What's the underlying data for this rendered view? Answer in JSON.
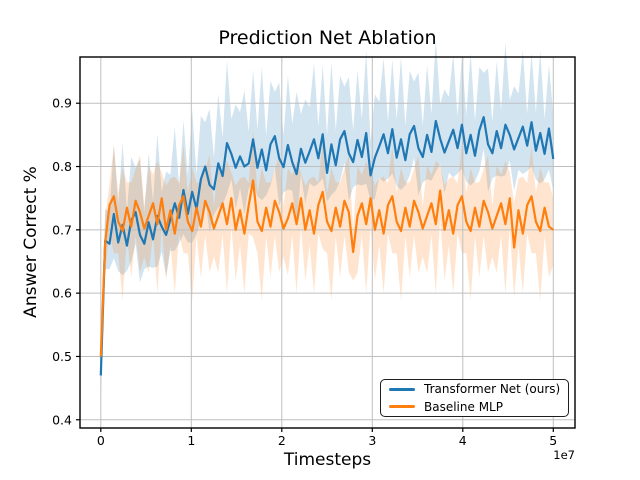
{
  "chart_data": {
    "type": "line",
    "title": "Prediction Net Ablation",
    "xlabel": "Timesteps",
    "ylabel": "Answer Correct %",
    "x_offset_label": "1e7",
    "grid": true,
    "grid_color": "#bfbfbf",
    "axes": {
      "xlim": [
        -2300000,
        52400000
      ],
      "ylim": [
        0.387,
        0.973
      ]
    },
    "xticks": {
      "values": [
        0,
        10000000,
        20000000,
        30000000,
        40000000,
        50000000
      ],
      "labels": [
        "0",
        "1",
        "2",
        "3",
        "4",
        "5"
      ]
    },
    "yticks": {
      "values": [
        0.4,
        0.5,
        0.6,
        0.7,
        0.8,
        0.9
      ],
      "labels": [
        "0.4",
        "0.5",
        "0.6",
        "0.7",
        "0.8",
        "0.9"
      ]
    },
    "legend": {
      "position": "lower right"
    },
    "band_opacity": 0.2,
    "series": [
      {
        "name": "Transformer Net (ours)",
        "color": "#1f77b4",
        "x_start": 0,
        "x_step": 480769,
        "y": [
          0.47,
          0.683,
          0.678,
          0.725,
          0.68,
          0.708,
          0.675,
          0.715,
          0.728,
          0.692,
          0.678,
          0.712,
          0.685,
          0.722,
          0.705,
          0.692,
          0.717,
          0.742,
          0.719,
          0.763,
          0.725,
          0.76,
          0.733,
          0.78,
          0.8,
          0.771,
          0.764,
          0.805,
          0.785,
          0.837,
          0.82,
          0.798,
          0.816,
          0.8,
          0.805,
          0.843,
          0.798,
          0.827,
          0.794,
          0.835,
          0.848,
          0.813,
          0.799,
          0.834,
          0.807,
          0.788,
          0.828,
          0.806,
          0.824,
          0.843,
          0.813,
          0.851,
          0.79,
          0.835,
          0.802,
          0.843,
          0.856,
          0.821,
          0.807,
          0.842,
          0.815,
          0.853,
          0.786,
          0.814,
          0.832,
          0.851,
          0.821,
          0.859,
          0.814,
          0.843,
          0.81,
          0.851,
          0.864,
          0.829,
          0.815,
          0.85,
          0.823,
          0.872,
          0.844,
          0.822,
          0.84,
          0.858,
          0.829,
          0.866,
          0.821,
          0.85,
          0.817,
          0.857,
          0.878,
          0.835,
          0.821,
          0.856,
          0.829,
          0.866,
          0.85,
          0.827,
          0.845,
          0.863,
          0.833,
          0.87,
          0.825,
          0.853,
          0.82,
          0.86,
          0.812
        ],
        "band_upper": [
          0.045,
          0.05,
          0.05,
          0.11,
          0.06,
          0.13,
          0.055,
          0.1,
          0.07,
          0.12,
          0.05,
          0.11,
          0.06,
          0.13,
          0.055,
          0.1,
          0.07,
          0.12,
          0.05,
          0.11,
          0.06,
          0.13,
          0.055,
          0.1,
          0.07,
          0.12,
          0.05,
          0.11,
          0.06,
          0.13,
          0.055,
          0.1,
          0.07,
          0.12,
          0.05,
          0.11,
          0.06,
          0.13,
          0.055,
          0.1,
          0.07,
          0.12,
          0.05,
          0.11,
          0.06,
          0.13,
          0.055,
          0.1,
          0.07,
          0.12,
          0.05,
          0.11,
          0.06,
          0.13,
          0.055,
          0.1,
          0.07,
          0.12,
          0.05,
          0.11,
          0.06,
          0.13,
          0.055,
          0.1,
          0.07,
          0.12,
          0.05,
          0.11,
          0.06,
          0.13,
          0.055,
          0.1,
          0.07,
          0.12,
          0.05,
          0.11,
          0.06,
          0.13,
          0.055,
          0.1,
          0.07,
          0.12,
          0.05,
          0.11,
          0.06,
          0.13,
          0.055,
          0.1,
          0.07,
          0.12,
          0.05,
          0.11,
          0.06,
          0.13,
          0.055,
          0.1,
          0.07,
          0.12,
          0.05,
          0.11,
          0.06,
          0.13,
          0.055,
          0.1,
          0.07
        ],
        "band_lower": [
          0.04,
          0.045,
          0.04,
          0.07,
          0.045,
          0.08,
          0.04,
          0.065,
          0.05,
          0.075,
          0.04,
          0.07,
          0.045,
          0.08,
          0.04,
          0.065,
          0.05,
          0.075,
          0.04,
          0.07,
          0.045,
          0.08,
          0.04,
          0.065,
          0.05,
          0.075,
          0.04,
          0.07,
          0.045,
          0.08,
          0.04,
          0.065,
          0.05,
          0.075,
          0.04,
          0.07,
          0.045,
          0.08,
          0.04,
          0.065,
          0.05,
          0.075,
          0.04,
          0.07,
          0.045,
          0.08,
          0.04,
          0.065,
          0.05,
          0.075,
          0.04,
          0.07,
          0.045,
          0.08,
          0.04,
          0.065,
          0.05,
          0.075,
          0.04,
          0.07,
          0.045,
          0.08,
          0.04,
          0.065,
          0.05,
          0.075,
          0.04,
          0.07,
          0.045,
          0.08,
          0.04,
          0.065,
          0.05,
          0.075,
          0.04,
          0.07,
          0.045,
          0.08,
          0.04,
          0.065,
          0.05,
          0.075,
          0.04,
          0.07,
          0.045,
          0.08,
          0.04,
          0.065,
          0.05,
          0.075,
          0.04,
          0.07,
          0.045,
          0.08,
          0.04,
          0.065,
          0.05,
          0.075,
          0.04,
          0.07,
          0.045,
          0.08,
          0.04,
          0.065,
          0.05
        ]
      },
      {
        "name": "Baseline MLP",
        "color": "#ff7f0e",
        "x_start": 0,
        "x_step": 480769,
        "y": [
          0.5,
          0.68,
          0.739,
          0.753,
          0.713,
          0.698,
          0.735,
          0.705,
          0.746,
          0.728,
          0.702,
          0.722,
          0.742,
          0.709,
          0.75,
          0.7,
          0.731,
          0.694,
          0.739,
          0.753,
          0.713,
          0.698,
          0.735,
          0.705,
          0.746,
          0.728,
          0.702,
          0.722,
          0.742,
          0.709,
          0.75,
          0.7,
          0.731,
          0.694,
          0.739,
          0.778,
          0.713,
          0.698,
          0.735,
          0.705,
          0.746,
          0.728,
          0.702,
          0.718,
          0.742,
          0.709,
          0.75,
          0.7,
          0.731,
          0.694,
          0.739,
          0.76,
          0.713,
          0.698,
          0.735,
          0.705,
          0.746,
          0.728,
          0.665,
          0.722,
          0.742,
          0.709,
          0.75,
          0.7,
          0.731,
          0.694,
          0.739,
          0.753,
          0.713,
          0.698,
          0.735,
          0.705,
          0.746,
          0.728,
          0.702,
          0.722,
          0.742,
          0.709,
          0.762,
          0.7,
          0.731,
          0.694,
          0.739,
          0.753,
          0.713,
          0.698,
          0.735,
          0.705,
          0.746,
          0.728,
          0.702,
          0.722,
          0.742,
          0.709,
          0.75,
          0.672,
          0.731,
          0.694,
          0.739,
          0.753,
          0.713,
          0.698,
          0.735,
          0.705,
          0.7
        ],
        "band_upper": [
          0.03,
          0.04,
          0.035,
          0.08,
          0.045,
          0.1,
          0.04,
          0.07,
          0.05,
          0.09,
          0.035,
          0.08,
          0.045,
          0.1,
          0.04,
          0.07,
          0.05,
          0.09,
          0.035,
          0.08,
          0.045,
          0.1,
          0.04,
          0.07,
          0.05,
          0.09,
          0.035,
          0.08,
          0.045,
          0.1,
          0.04,
          0.07,
          0.05,
          0.09,
          0.035,
          0.08,
          0.045,
          0.1,
          0.04,
          0.07,
          0.05,
          0.09,
          0.035,
          0.08,
          0.045,
          0.1,
          0.04,
          0.07,
          0.05,
          0.09,
          0.035,
          0.08,
          0.045,
          0.1,
          0.04,
          0.07,
          0.05,
          0.09,
          0.035,
          0.08,
          0.045,
          0.1,
          0.04,
          0.07,
          0.05,
          0.09,
          0.035,
          0.08,
          0.045,
          0.1,
          0.04,
          0.07,
          0.05,
          0.09,
          0.035,
          0.08,
          0.045,
          0.1,
          0.04,
          0.07,
          0.05,
          0.09,
          0.035,
          0.08,
          0.045,
          0.1,
          0.04,
          0.07,
          0.05,
          0.09,
          0.035,
          0.08,
          0.045,
          0.1,
          0.04,
          0.07,
          0.05,
          0.09,
          0.035,
          0.08,
          0.045,
          0.1,
          0.04,
          0.07,
          0.05
        ],
        "band_lower": [
          0.03,
          0.045,
          0.045,
          0.09,
          0.05,
          0.11,
          0.045,
          0.08,
          0.055,
          0.095,
          0.045,
          0.09,
          0.05,
          0.11,
          0.045,
          0.08,
          0.055,
          0.095,
          0.045,
          0.09,
          0.05,
          0.11,
          0.045,
          0.08,
          0.055,
          0.095,
          0.045,
          0.09,
          0.05,
          0.11,
          0.045,
          0.08,
          0.055,
          0.095,
          0.045,
          0.09,
          0.05,
          0.11,
          0.045,
          0.08,
          0.055,
          0.095,
          0.045,
          0.09,
          0.05,
          0.11,
          0.045,
          0.08,
          0.055,
          0.095,
          0.045,
          0.09,
          0.05,
          0.11,
          0.045,
          0.08,
          0.055,
          0.095,
          0.045,
          0.09,
          0.05,
          0.11,
          0.045,
          0.08,
          0.055,
          0.095,
          0.045,
          0.09,
          0.05,
          0.11,
          0.045,
          0.08,
          0.055,
          0.095,
          0.045,
          0.09,
          0.05,
          0.11,
          0.045,
          0.08,
          0.055,
          0.095,
          0.045,
          0.09,
          0.05,
          0.11,
          0.045,
          0.08,
          0.055,
          0.095,
          0.045,
          0.09,
          0.05,
          0.11,
          0.045,
          0.08,
          0.055,
          0.095,
          0.045,
          0.09,
          0.05,
          0.11,
          0.045,
          0.08,
          0.055
        ]
      }
    ]
  }
}
